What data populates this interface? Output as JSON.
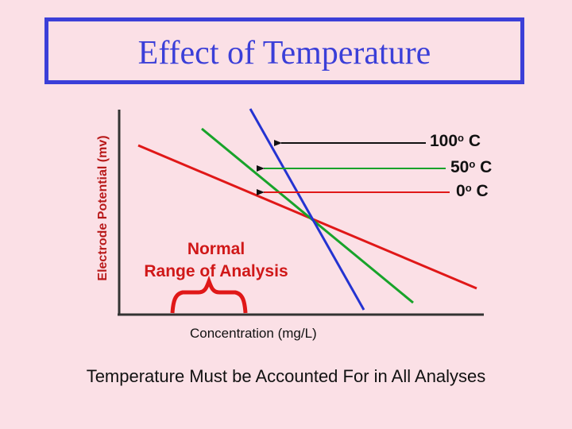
{
  "title": "Effect of Temperature",
  "y_axis_label": "Electrode Potential (mv)",
  "x_axis_label": "Concentration (mg/L)",
  "normal_range_label_line1": "Normal",
  "normal_range_label_line2": "Range of Analysis",
  "footer_text": "Temperature Must be Accounted For in All Analyses",
  "lines": [
    {
      "label_value": "100",
      "label_degree": "o",
      "label_unit": " C",
      "color": "#2433d1"
    },
    {
      "label_value": "50",
      "label_degree": "o",
      "label_unit": " C",
      "color": "#18a32a"
    },
    {
      "label_value": "0",
      "label_degree": "o",
      "label_unit": " C",
      "color": "#e01818"
    }
  ],
  "colors": {
    "background": "#fbe0e6",
    "title": "#3b3fd8",
    "accent_red": "#e01818"
  }
}
